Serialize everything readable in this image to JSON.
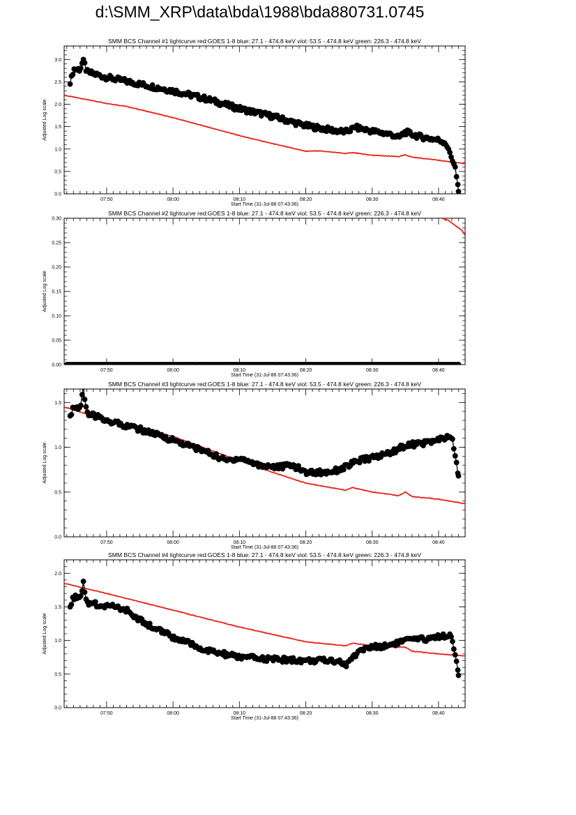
{
  "page": {
    "title": "d:\\SMM_XRP\\data\\bda\\1988\\bda880731.0745"
  },
  "colors": {
    "goes": "#e8231b",
    "bcs": "#000000",
    "axis": "#000000"
  },
  "chart_data": [
    {
      "type": "line",
      "title": "SMM BCS Channel #1 lightcurve  red:GOES 1-8  blue: 27.1 - 474.8 keV  viol: 53.5 - 474.8 keV  green: 226.3 - 474.8 keV",
      "xlabel": "Start Time (31-Jul-88 07:43:36)",
      "ylabel": "Adjusted Log scale",
      "xticks": [
        "07:50",
        "08:00",
        "08:10",
        "08:20",
        "08:30",
        "08:40"
      ],
      "yticks": [
        "0.0",
        "0.5",
        "1.0",
        "1.5",
        "2.0",
        "2.5",
        "3.0"
      ],
      "xlim": [
        "07:43:36",
        "08:44:00"
      ],
      "ylim": [
        0.0,
        3.3
      ],
      "grid": false,
      "series": [
        {
          "color": "red",
          "marker": "none",
          "x": [
            "07:43:36",
            "07:50:00",
            "07:53:00",
            "07:55:00",
            "08:00:00",
            "08:10:00",
            "08:15:00",
            "08:20:00",
            "08:22:00",
            "08:26:00",
            "08:27:00",
            "08:30:00",
            "08:34:00",
            "08:35:00",
            "08:36:00",
            "08:40:00",
            "08:44:00"
          ],
          "y": [
            2.2,
            2.02,
            1.95,
            1.88,
            1.7,
            1.3,
            1.12,
            0.95,
            0.96,
            0.9,
            0.92,
            0.86,
            0.83,
            0.87,
            0.82,
            0.75,
            0.67
          ]
        },
        {
          "color": "black",
          "marker": "circle",
          "x": [
            "07:44:30",
            "07:45:00",
            "07:46:00",
            "07:46:30",
            "07:47:00",
            "07:50:00",
            "07:55:00",
            "08:00:00",
            "08:05:00",
            "08:10:00",
            "08:15:00",
            "08:20:00",
            "08:24:00",
            "08:26:00",
            "08:27:30",
            "08:30:00",
            "08:33:00",
            "08:34:00",
            "08:35:00",
            "08:37:00",
            "08:40:00",
            "08:41:00",
            "08:41:30",
            "08:42:30",
            "08:43:00"
          ],
          "y": [
            2.45,
            2.78,
            2.78,
            3.0,
            2.72,
            2.6,
            2.45,
            2.3,
            2.12,
            1.9,
            1.73,
            1.52,
            1.42,
            1.38,
            1.48,
            1.4,
            1.32,
            1.25,
            1.38,
            1.28,
            1.2,
            1.15,
            1.0,
            0.6,
            0.05
          ]
        }
      ]
    },
    {
      "type": "line",
      "title": "SMM BCS Channel #2 lightcurve  red:GOES 1-8  blue: 27.1 - 474.8 keV  viol: 53.5 - 474.8 keV  green: 226.3 - 474.8 keV",
      "xlabel": "Start Time (31-Jul-88 07:43:36)",
      "ylabel": "Adjusted Log scale",
      "xticks": [
        "07:50",
        "08:00",
        "08:10",
        "08:20",
        "08:30",
        "08:40"
      ],
      "yticks": [
        "0.00",
        "0.05",
        "0.10",
        "0.15",
        "0.20",
        "0.25",
        "0.30"
      ],
      "xlim": [
        "07:43:36",
        "08:44:00"
      ],
      "ylim": [
        0.0,
        0.3
      ],
      "grid": false,
      "series": [
        {
          "color": "red",
          "marker": "none",
          "x": [
            "08:40:30",
            "08:41:30",
            "08:42:30",
            "08:43:30",
            "08:44:00"
          ],
          "y": [
            0.3,
            0.295,
            0.285,
            0.275,
            0.265
          ]
        },
        {
          "color": "black",
          "marker": "circle",
          "x": [
            "07:44:00",
            "08:00:00",
            "08:20:00",
            "08:43:00"
          ],
          "y": [
            0.0,
            0.0,
            0.0,
            0.0
          ]
        }
      ]
    },
    {
      "type": "line",
      "title": "SMM BCS Channel #3 lightcurve  red:GOES 1-8  blue: 27.1 - 474.8 keV  viol: 53.5 - 474.8 keV  green: 226.3 - 474.8 keV",
      "xlabel": "Start Time (31-Jul-88 07:43:36)",
      "ylabel": "Adjusted Log scale",
      "xticks": [
        "07:50",
        "08:00",
        "08:10",
        "08:20",
        "08:30",
        "08:40"
      ],
      "yticks": [
        "0.0",
        "0.5",
        "1.0",
        "1.5"
      ],
      "xlim": [
        "07:43:36",
        "08:44:00"
      ],
      "ylim": [
        0.0,
        1.65
      ],
      "grid": false,
      "series": [
        {
          "color": "red",
          "marker": "none",
          "x": [
            "07:43:36",
            "07:50:00",
            "08:00:00",
            "08:10:00",
            "08:15:00",
            "08:20:00",
            "08:26:00",
            "08:27:00",
            "08:30:00",
            "08:34:00",
            "08:35:00",
            "08:36:00",
            "08:40:00",
            "08:44:00"
          ],
          "y": [
            1.45,
            1.3,
            1.12,
            0.85,
            0.72,
            0.6,
            0.52,
            0.55,
            0.5,
            0.46,
            0.5,
            0.45,
            0.42,
            0.37
          ]
        },
        {
          "color": "black",
          "marker": "circle",
          "x": [
            "07:44:30",
            "07:45:00",
            "07:46:00",
            "07:46:30",
            "07:47:00",
            "07:50:00",
            "07:55:00",
            "08:00:00",
            "08:05:00",
            "08:08:00",
            "08:10:00",
            "08:13:00",
            "08:16:00",
            "08:18:00",
            "08:20:00",
            "08:23:00",
            "08:25:00",
            "08:28:00",
            "08:31:00",
            "08:33:00",
            "08:35:00",
            "08:38:00",
            "08:40:00",
            "08:42:00",
            "08:43:00"
          ],
          "y": [
            1.35,
            1.45,
            1.42,
            1.67,
            1.38,
            1.3,
            1.2,
            1.08,
            0.95,
            0.85,
            0.88,
            0.8,
            0.78,
            0.8,
            0.72,
            0.72,
            0.75,
            0.85,
            0.9,
            0.95,
            1.02,
            1.05,
            1.08,
            1.12,
            0.68
          ]
        }
      ]
    },
    {
      "type": "line",
      "title": "SMM BCS Channel #4 lightcurve  red:GOES 1-8  blue: 27.1 - 474.8 keV  viol: 53.5 - 474.8 keV  green: 226.3 - 474.8 keV",
      "xlabel": "Start Time (31-Jul-88 07:43:36)",
      "ylabel": "Adjusted Log scale",
      "xticks": [
        "07:50",
        "08:00",
        "08:10",
        "08:20",
        "08:30",
        "08:40"
      ],
      "yticks": [
        "0.0",
        "0.5",
        "1.0",
        "1.5",
        "2.0"
      ],
      "xlim": [
        "07:43:36",
        "08:44:00"
      ],
      "ylim": [
        0.0,
        2.2
      ],
      "grid": false,
      "series": [
        {
          "color": "red",
          "marker": "none",
          "x": [
            "07:43:36",
            "07:50:00",
            "07:54:00",
            "08:00:00",
            "08:10:00",
            "08:20:00",
            "08:26:00",
            "08:27:00",
            "08:30:00",
            "08:34:00",
            "08:35:00",
            "08:36:00",
            "08:40:00",
            "08:44:00"
          ],
          "y": [
            1.85,
            1.7,
            1.6,
            1.45,
            1.2,
            0.98,
            0.92,
            0.96,
            0.92,
            0.9,
            0.9,
            0.84,
            0.8,
            0.77
          ]
        },
        {
          "color": "black",
          "marker": "circle",
          "x": [
            "07:44:30",
            "07:45:00",
            "07:46:00",
            "07:46:30",
            "07:47:00",
            "07:50:00",
            "07:53:00",
            "07:55:00",
            "07:58:00",
            "08:00:00",
            "08:05:00",
            "08:10:00",
            "08:15:00",
            "08:20:00",
            "08:25:00",
            "08:26:00",
            "08:28:00",
            "08:30:00",
            "08:32:00",
            "08:35:00",
            "08:38:00",
            "08:40:00",
            "08:42:00",
            "08:43:00"
          ],
          "y": [
            1.5,
            1.65,
            1.6,
            1.88,
            1.55,
            1.52,
            1.45,
            1.3,
            1.15,
            1.05,
            0.85,
            0.75,
            0.72,
            0.7,
            0.7,
            0.62,
            0.85,
            0.9,
            0.92,
            1.0,
            1.02,
            1.06,
            1.08,
            0.48
          ]
        }
      ]
    }
  ]
}
